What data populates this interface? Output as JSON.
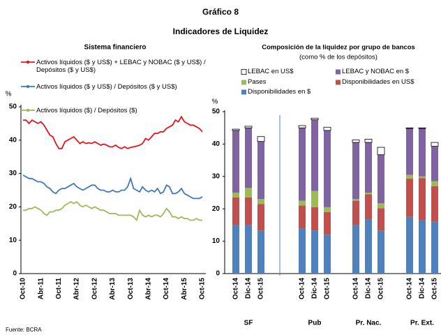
{
  "header": {
    "title": "Gráfico 8",
    "subtitle": "Indicadores de Liquidez"
  },
  "footer": {
    "source": "Fuente: BCRA"
  },
  "chart_data": [
    {
      "type": "line",
      "title": "Sistema financiero",
      "y_label": "%",
      "ylim": [
        0,
        50
      ],
      "yticks": [
        0,
        10,
        20,
        30,
        40,
        50
      ],
      "categories": [
        "Oct-10",
        null,
        null,
        null,
        null,
        null,
        "Abr-11",
        null,
        null,
        null,
        null,
        null,
        "Oct-11",
        null,
        null,
        null,
        null,
        null,
        "Abr-12",
        null,
        null,
        null,
        null,
        null,
        "Oct-12",
        null,
        null,
        null,
        null,
        null,
        "Abr-13",
        null,
        null,
        null,
        null,
        null,
        "Oct-13",
        null,
        null,
        null,
        null,
        null,
        "Abr-14",
        null,
        null,
        null,
        null,
        null,
        "Oct-14",
        null,
        null,
        null,
        null,
        null,
        "Abr-15",
        null,
        null,
        null,
        null,
        null,
        "Oct-15"
      ],
      "series": [
        {
          "name": "Activos líquidos ($ y US$) + LEBAC y NOBAC ($ y US$) / Depósitos ($ y US$)",
          "color": "#e8141b",
          "values": [
            46,
            46,
            45,
            46,
            45.5,
            45,
            45.5,
            44.5,
            43,
            41.5,
            41,
            39,
            37.5,
            37.5,
            39.5,
            40,
            40.5,
            41,
            40,
            39,
            39.5,
            39,
            39.2,
            39,
            39.5,
            39,
            38.5,
            38.8,
            38.5,
            38,
            38,
            38.5,
            37.8,
            37.5,
            38,
            37.5,
            37.8,
            38,
            38.2,
            38.5,
            39,
            40.5,
            40,
            41,
            42,
            42,
            42.5,
            42.5,
            43.5,
            44,
            44.5,
            46,
            45.5,
            47,
            45.5,
            45,
            44.5,
            44.5,
            44,
            43.5,
            42.5
          ]
        },
        {
          "name": "Activos líquidos ($ y US$) / Depósitos ($ y US$)",
          "color": "#3c78c0",
          "values": [
            29.5,
            29,
            28.5,
            28.5,
            28,
            27.5,
            27.5,
            27,
            26,
            25.5,
            24.5,
            24,
            25,
            25.5,
            25.5,
            26,
            26.5,
            27,
            26,
            25.5,
            25,
            25.5,
            26,
            26.5,
            26.5,
            25.5,
            25,
            25,
            24.5,
            24.5,
            25,
            24.5,
            24.5,
            25,
            25,
            26,
            28.5,
            25.5,
            25,
            24.5,
            26,
            25,
            24.5,
            25,
            24.5,
            25.5,
            24,
            24.5,
            26.5,
            26,
            24,
            24,
            24.5,
            25.5,
            24,
            23.5,
            23,
            22.5,
            22.5,
            22.5,
            23
          ]
        },
        {
          "name": "Activos líquidos ($) / Depósitos ($)",
          "color": "#9bbb59",
          "values": [
            19,
            19,
            19.5,
            19.5,
            20,
            19.5,
            19,
            18,
            17.5,
            18.5,
            18.5,
            19,
            19,
            19.5,
            20.5,
            21,
            21.5,
            21,
            21.5,
            20.5,
            20,
            20.5,
            20,
            19.5,
            20,
            19.5,
            19,
            19,
            18.5,
            18,
            18,
            18,
            17.5,
            17.5,
            17.5,
            17.5,
            17.5,
            17,
            16,
            19,
            17.5,
            17,
            17.5,
            17,
            17.5,
            17.5,
            17,
            18,
            19.5,
            18.5,
            17,
            17,
            16.5,
            17,
            16.5,
            16.5,
            16,
            16,
            16.5,
            16,
            16
          ]
        }
      ]
    },
    {
      "type": "stacked_bar",
      "title": "Composición de la liquidez por grupo de bancos",
      "subtitle": "(como % de los depósitos)",
      "y_label": "%",
      "ylim": [
        0,
        50
      ],
      "yticks": [
        0,
        10,
        20,
        30,
        40,
        50
      ],
      "categories": [
        "Oct-14",
        "Dic-14",
        "Oct-15",
        "Oct-14",
        "Dic-14",
        "Oct-15",
        "Oct-14",
        "Dic-14",
        "Oct-15",
        "Oct-14",
        "Dic-14",
        "Oct-15"
      ],
      "groups": [
        "SF",
        "Pub",
        "Pr. Nac.",
        "Pr. Ext."
      ],
      "series": [
        {
          "name": "Disponibilidades en $",
          "color": "#4f81bd",
          "values": [
            15,
            15,
            13.3,
            14,
            13.3,
            12,
            15,
            16.8,
            13.2,
            17.5,
            16.5,
            16
          ]
        },
        {
          "name": "Disponibilidades en US$",
          "color": "#c0504d",
          "values": [
            8.5,
            8.5,
            8.2,
            7,
            7.2,
            7,
            7.5,
            7.7,
            7,
            11.8,
            13,
            11
          ]
        },
        {
          "name": "Pases",
          "color": "#9bbb59",
          "values": [
            1.5,
            3,
            1.5,
            1.5,
            5,
            1.5,
            0.5,
            0.5,
            1.5,
            1.2,
            0.5,
            1.5
          ]
        },
        {
          "name": "LEBAC y NOBAC en $",
          "color": "#8064a2",
          "values": [
            19.2,
            18.5,
            17.8,
            22.5,
            22,
            23.7,
            17.5,
            15.5,
            15,
            14.3,
            14.8,
            10.8
          ]
        },
        {
          "name": "LEBAC en US$",
          "color": "#ffffff",
          "values": [
            0.4,
            0.5,
            1.5,
            0.7,
            0.5,
            1,
            0.8,
            1,
            2.3,
            0.2,
            0.2,
            1.2
          ]
        }
      ]
    }
  ]
}
